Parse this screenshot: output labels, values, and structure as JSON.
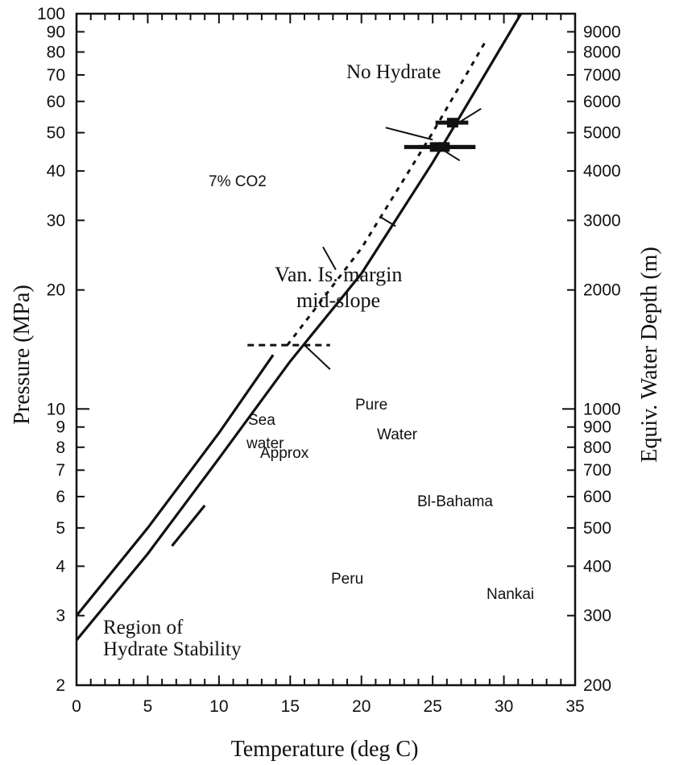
{
  "chart_data": {
    "type": "line",
    "title": "",
    "xlabel": "Temperature (deg C)",
    "ylabel": "Pressure (MPa)",
    "y2label": "Equiv. Water Depth (m)",
    "xlim": [
      0,
      35
    ],
    "ylim": [
      2,
      100
    ],
    "yscale": "log",
    "x_ticks": [
      0,
      5,
      10,
      15,
      20,
      25,
      30,
      35
    ],
    "x_tick_labels": [
      "0",
      "5",
      "10",
      "15",
      "20",
      "25",
      "30",
      "35"
    ],
    "y_ticks": [
      2,
      3,
      4,
      5,
      6,
      7,
      8,
      9,
      10,
      20,
      30,
      40,
      50,
      60,
      70,
      80,
      90,
      100
    ],
    "y_tick_labels": [
      "2",
      "3",
      "4",
      "5",
      "6",
      "7",
      "8",
      "9",
      "10",
      "20",
      "30",
      "40",
      "50",
      "60",
      "70",
      "80",
      "90",
      "100"
    ],
    "y2_ticks": [
      200,
      300,
      400,
      500,
      600,
      700,
      800,
      900,
      1000,
      2000,
      3000,
      4000,
      5000,
      6000,
      7000,
      8000,
      9000
    ],
    "y2_tick_labels": [
      "200",
      "300",
      "400",
      "500",
      "600",
      "700",
      "800",
      "900",
      "1000",
      "2000",
      "3000",
      "4000",
      "5000",
      "6000",
      "7000",
      "8000",
      "9000"
    ],
    "grid": false,
    "series": [
      {
        "name": "Pure Water",
        "style": "solid",
        "x": [
          0,
          5,
          10,
          15,
          20,
          25,
          31.2
        ],
        "y": [
          2.6,
          4.3,
          7.5,
          13.2,
          22,
          42,
          100
        ]
      },
      {
        "name": "Sea water",
        "style": "solid",
        "x": [
          0,
          5,
          10,
          13.8
        ],
        "y": [
          3.0,
          5.0,
          8.7,
          13.7
        ]
      },
      {
        "name": "Approx",
        "style": "dotted",
        "x": [
          14.8,
          20,
          25,
          28.7
        ],
        "y": [
          14.5,
          25.5,
          50,
          85
        ]
      },
      {
        "name": "7% CO2",
        "style": "solid",
        "x": [
          6.7,
          9.0
        ],
        "y": [
          4.5,
          5.7
        ]
      }
    ],
    "horizontal_marks": [
      {
        "label": "Van. Is. margin mid-slope",
        "x_range": [
          12,
          17.8
        ],
        "y": 14.5,
        "style": "dashed"
      }
    ],
    "site_markers": [
      {
        "label": "Bl-Bahama",
        "x_range": [
          23,
          28
        ],
        "y": 46,
        "x": 25.2
      },
      {
        "label": "Peru",
        "x_range": [
          24,
          28
        ],
        "y": 46,
        "x": 25.8
      },
      {
        "label": "Nankai",
        "x_range": [
          25.2,
          27.5
        ],
        "y": 53,
        "x": 26.4
      }
    ],
    "annotations": {
      "no_hydrate": "No Hydrate",
      "region_line1": "Region of",
      "region_line2": "Hydrate Stability",
      "co2": "7% CO2",
      "van_line1": "Van. Is. margin",
      "van_line2": "mid-slope",
      "pure": "Pure",
      "water": "Water",
      "sea": "Sea",
      "sea_water": "water",
      "approx": "Approx",
      "bahama": "Bl-Bahama",
      "peru": "Peru",
      "nankai": "Nankai"
    }
  }
}
